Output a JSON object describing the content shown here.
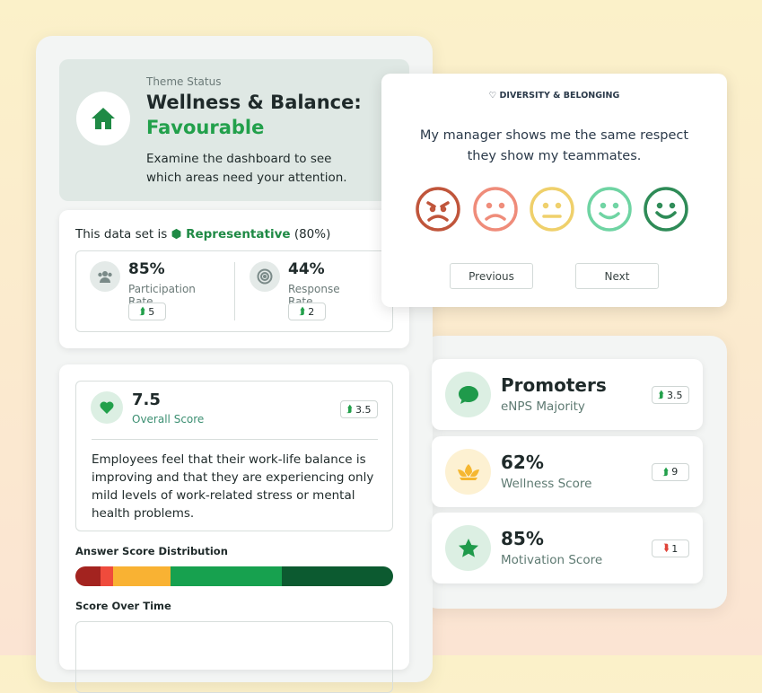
{
  "theme": {
    "label": "Theme Status",
    "title": "Wellness & Balance:",
    "status": "Favourable",
    "description": "Examine the dashboard to see which areas need your attention."
  },
  "dataset": {
    "prefix": "This data set is",
    "status": "Representative",
    "share": "(80%)",
    "metrics": [
      {
        "value": "85%",
        "label": "Participation Rate",
        "change": "5"
      },
      {
        "value": "44%",
        "label": "Response Rate",
        "change": "2"
      }
    ]
  },
  "score": {
    "value": "7.5",
    "label": "Overall Score",
    "change": "3.5",
    "text": "Employees feel that their work-life balance is improving and that they are experiencing only mild levels of work-related stress or mental health problems."
  },
  "distribution": {
    "title": "Answer Score Distribution",
    "segments": [
      {
        "value": 8,
        "color": "#a3231f"
      },
      {
        "value": 4,
        "color": "#ef4b3c"
      },
      {
        "value": 18,
        "color": "#f9b233"
      },
      {
        "value": 35,
        "color": "#17a14f"
      },
      {
        "value": 35,
        "color": "#0c5a30"
      }
    ]
  },
  "score_over_time": {
    "title": "Score Over Time"
  },
  "survey": {
    "category": "DIVERSITY & BELONGING",
    "question": "My manager shows me the same respect they show my teammates.",
    "buttons": [
      "Previous",
      "Next"
    ]
  },
  "stats": [
    {
      "value": "Promoters",
      "label": "eNPS Majority",
      "change": "3.5",
      "trend": "up"
    },
    {
      "value": "62%",
      "label": "Wellness Score",
      "change": "9",
      "trend": "up"
    },
    {
      "value": "85%",
      "label": "Motivation Score",
      "change": "1",
      "trend": "down"
    }
  ]
}
